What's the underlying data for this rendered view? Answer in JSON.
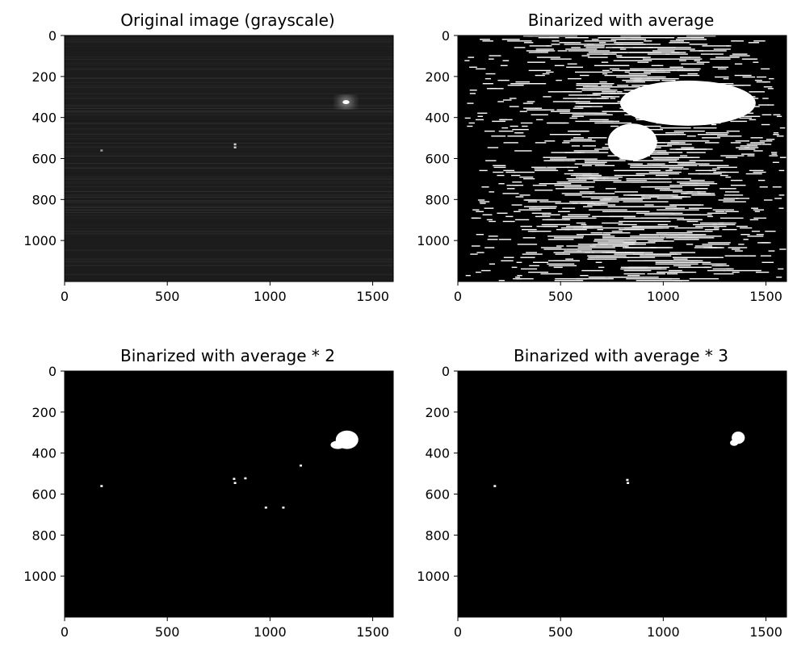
{
  "chart_data": [
    {
      "type": "heatmap",
      "title": "Original image (grayscale)",
      "colormap": "gray",
      "xlim": [
        0,
        1600
      ],
      "ylim": [
        1200,
        0
      ],
      "xticks": [
        0,
        500,
        1000,
        1500
      ],
      "yticks": [
        0,
        200,
        400,
        600,
        800,
        1000
      ],
      "background": "#1c1c1c",
      "features": [
        {
          "shape": "blob",
          "x": 1370,
          "y": 325,
          "rx": 30,
          "ry": 18,
          "color": "#ffffff"
        },
        {
          "shape": "dot",
          "x": 830,
          "y": 530,
          "color": "#cfcfcf"
        },
        {
          "shape": "dot",
          "x": 830,
          "y": 545,
          "color": "#cfcfcf"
        },
        {
          "shape": "dot",
          "x": 180,
          "y": 560,
          "color": "#9a9a9a"
        }
      ]
    },
    {
      "type": "heatmap",
      "title": "Binarized with average",
      "colormap": "gray",
      "xlim": [
        0,
        1600
      ],
      "ylim": [
        1200,
        0
      ],
      "xticks": [
        0,
        500,
        1000,
        1500
      ],
      "yticks": [
        0,
        200,
        400,
        600,
        800,
        1000
      ],
      "background": "#000000",
      "features": [
        {
          "shape": "noise-band",
          "density": 0.55,
          "color": "#ffffff"
        },
        {
          "shape": "blob",
          "x": 1120,
          "y": 330,
          "rx": 330,
          "ry": 110,
          "color": "#ffffff"
        },
        {
          "shape": "blob",
          "x": 850,
          "y": 520,
          "rx": 120,
          "ry": 90,
          "color": "#ffffff"
        }
      ]
    },
    {
      "type": "heatmap",
      "title": "Binarized with average * 2",
      "colormap": "gray",
      "xlim": [
        0,
        1600
      ],
      "ylim": [
        1200,
        0
      ],
      "xticks": [
        0,
        500,
        1000,
        1500
      ],
      "yticks": [
        0,
        200,
        400,
        600,
        800,
        1000
      ],
      "background": "#000000",
      "features": [
        {
          "shape": "blob",
          "x": 1375,
          "y": 335,
          "rx": 55,
          "ry": 45,
          "color": "#ffffff"
        },
        {
          "shape": "blob",
          "x": 1330,
          "y": 360,
          "rx": 35,
          "ry": 20,
          "color": "#ffffff"
        },
        {
          "shape": "dot",
          "x": 825,
          "y": 525,
          "color": "#ffffff"
        },
        {
          "shape": "dot",
          "x": 830,
          "y": 545,
          "color": "#ffffff"
        },
        {
          "shape": "dot",
          "x": 880,
          "y": 522,
          "color": "#ffffff"
        },
        {
          "shape": "dot",
          "x": 180,
          "y": 560,
          "color": "#ffffff"
        },
        {
          "shape": "dot",
          "x": 980,
          "y": 665,
          "color": "#ffffff"
        },
        {
          "shape": "dot",
          "x": 1065,
          "y": 665,
          "color": "#ffffff"
        },
        {
          "shape": "dot",
          "x": 1150,
          "y": 460,
          "color": "#ffffff"
        }
      ]
    },
    {
      "type": "heatmap",
      "title": "Binarized with average * 3",
      "colormap": "gray",
      "xlim": [
        0,
        1600
      ],
      "ylim": [
        1200,
        0
      ],
      "xticks": [
        0,
        500,
        1000,
        1500
      ],
      "yticks": [
        0,
        200,
        400,
        600,
        800,
        1000
      ],
      "background": "#000000",
      "features": [
        {
          "shape": "blob",
          "x": 1365,
          "y": 325,
          "rx": 32,
          "ry": 30,
          "color": "#ffffff"
        },
        {
          "shape": "blob",
          "x": 1345,
          "y": 350,
          "rx": 20,
          "ry": 15,
          "color": "#ffffff"
        },
        {
          "shape": "dot",
          "x": 825,
          "y": 530,
          "color": "#ffffff"
        },
        {
          "shape": "dot",
          "x": 828,
          "y": 545,
          "color": "#ffffff"
        },
        {
          "shape": "dot",
          "x": 180,
          "y": 560,
          "color": "#ffffff"
        }
      ]
    }
  ]
}
